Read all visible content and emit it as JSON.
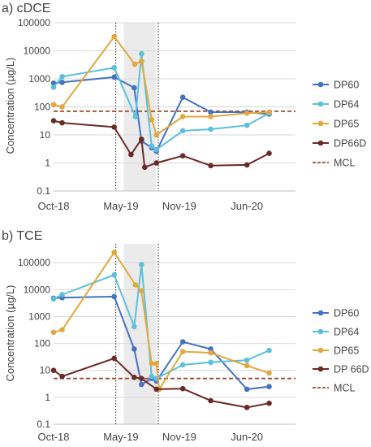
{
  "chart_data": [
    {
      "type": "line",
      "title": "a) cDCE",
      "ylabel": "Concentration (µg/L)",
      "yscale": "log",
      "ylim": [
        0.1,
        100000
      ],
      "ytick_labels": [
        "0.1",
        "1",
        "10",
        "100",
        "1000",
        "10000",
        "100000"
      ],
      "xlim": [
        "2018-10-01",
        "2020-11-01"
      ],
      "xtick_labels": [
        {
          "date": "2018-10-01",
          "label": "Oct-18"
        },
        {
          "date": "2019-05-01",
          "label": "May-19"
        },
        {
          "date": "2019-11-01",
          "label": "Nov-19"
        },
        {
          "date": "2020-06-01",
          "label": "Jun-20"
        }
      ],
      "shaded_period": [
        "2019-05-10",
        "2019-08-20"
      ],
      "vlines": [
        "2019-04-15",
        "2019-08-27"
      ],
      "legend_position": "right",
      "series": [
        {
          "name": "DP60",
          "color": "#4472c4",
          "points": [
            [
              "2018-10-01",
              700
            ],
            [
              "2018-10-28",
              750
            ],
            [
              "2019-04-10",
              1150
            ],
            [
              "2019-06-12",
              480
            ],
            [
              "2019-07-05",
              6
            ],
            [
              "2019-08-06",
              3.5
            ],
            [
              "2019-08-21",
              2.6
            ],
            [
              "2019-11-12",
              220
            ],
            [
              "2020-02-08",
              65
            ],
            [
              "2020-06-01",
              65
            ],
            [
              "2020-08-10",
              55
            ]
          ]
        },
        {
          "name": "DP64",
          "color": "#5bc0de",
          "points": [
            [
              "2018-10-01",
              500
            ],
            [
              "2018-10-28",
              1200
            ],
            [
              "2019-04-10",
              2500
            ],
            [
              "2019-06-16",
              45
            ],
            [
              "2019-07-05",
              7800
            ],
            [
              "2019-08-06",
              4
            ],
            [
              "2019-08-21",
              3
            ],
            [
              "2019-11-12",
              14
            ],
            [
              "2020-02-08",
              16
            ],
            [
              "2020-06-01",
              22
            ],
            [
              "2020-08-10",
              60
            ]
          ]
        },
        {
          "name": "DP65",
          "color": "#e3a83d",
          "points": [
            [
              "2018-10-01",
              120
            ],
            [
              "2018-10-28",
              100
            ],
            [
              "2019-04-10",
              32000
            ],
            [
              "2019-06-14",
              3300
            ],
            [
              "2019-07-05",
              4300
            ],
            [
              "2019-08-06",
              35
            ],
            [
              "2019-08-21",
              10
            ],
            [
              "2019-11-12",
              45
            ],
            [
              "2020-02-08",
              45
            ],
            [
              "2020-06-01",
              60
            ],
            [
              "2020-08-10",
              65
            ]
          ]
        },
        {
          "name": "DP66D",
          "color": "#6b2a25",
          "points": [
            [
              "2018-10-01",
              32
            ],
            [
              "2018-10-28",
              27
            ],
            [
              "2019-04-10",
              19
            ],
            [
              "2019-06-02",
              2
            ],
            [
              "2019-07-05",
              7
            ],
            [
              "2019-07-15",
              0.7
            ],
            [
              "2019-08-21",
              1
            ],
            [
              "2019-11-12",
              1.8
            ],
            [
              "2020-02-08",
              0.8
            ],
            [
              "2020-06-01",
              0.85
            ],
            [
              "2020-08-10",
              2.2
            ]
          ]
        }
      ],
      "mcl": {
        "name": "MCL",
        "value": 70,
        "color": "#a0472a"
      }
    },
    {
      "type": "line",
      "title": "b) TCE",
      "ylabel": "Concentration (µg/L)",
      "yscale": "log",
      "ylim": [
        0.1,
        500000
      ],
      "ytick_labels": [
        "0.1",
        "1",
        "10",
        "100",
        "1000",
        "10000",
        "100000"
      ],
      "xlim": [
        "2018-10-01",
        "2020-11-01"
      ],
      "xtick_labels": [
        {
          "date": "2018-10-01",
          "label": "Oct-18"
        },
        {
          "date": "2019-05-01",
          "label": "May-19"
        },
        {
          "date": "2019-11-01",
          "label": "Nov-19"
        },
        {
          "date": "2020-06-01",
          "label": "Jun-20"
        }
      ],
      "shaded_period": [
        "2019-05-10",
        "2019-08-20"
      ],
      "vlines": [
        "2019-04-15",
        "2019-08-27"
      ],
      "legend_position": "right",
      "series": [
        {
          "name": "DP60",
          "color": "#4472c4",
          "points": [
            [
              "2018-10-01",
              4800
            ],
            [
              "2018-10-28",
              5000
            ],
            [
              "2019-04-10",
              5500
            ],
            [
              "2019-06-12",
              62
            ],
            [
              "2019-07-05",
              3
            ],
            [
              "2019-08-06",
              5
            ],
            [
              "2019-08-21",
              4
            ],
            [
              "2019-11-12",
              115
            ],
            [
              "2020-02-08",
              62
            ],
            [
              "2020-06-01",
              2
            ],
            [
              "2020-08-10",
              2.5
            ]
          ]
        },
        {
          "name": "DP64",
          "color": "#5bc0de",
          "points": [
            [
              "2018-10-01",
              4500
            ],
            [
              "2018-10-28",
              6500
            ],
            [
              "2019-04-10",
              35000
            ],
            [
              "2019-06-12",
              420
            ],
            [
              "2019-07-05",
              85000
            ],
            [
              "2019-08-06",
              6
            ],
            [
              "2019-08-21",
              5
            ],
            [
              "2019-11-12",
              16
            ],
            [
              "2020-02-08",
              20
            ],
            [
              "2020-06-01",
              24
            ],
            [
              "2020-08-10",
              55
            ]
          ]
        },
        {
          "name": "DP65",
          "color": "#e3a83d",
          "points": [
            [
              "2018-10-01",
              260
            ],
            [
              "2018-10-28",
              320
            ],
            [
              "2019-04-10",
              240000
            ],
            [
              "2019-06-16",
              15000
            ],
            [
              "2019-07-05",
              9000
            ],
            [
              "2019-08-06",
              18
            ],
            [
              "2019-08-21",
              18
            ],
            [
              "2019-08-30",
              2
            ],
            [
              "2019-11-12",
              50
            ],
            [
              "2020-02-08",
              45
            ],
            [
              "2020-06-01",
              15
            ],
            [
              "2020-08-10",
              8
            ]
          ]
        },
        {
          "name": "DP 66D",
          "color": "#6b2a25",
          "points": [
            [
              "2018-10-01",
              10
            ],
            [
              "2018-10-28",
              6
            ],
            [
              "2019-04-10",
              28
            ],
            [
              "2019-06-12",
              5.5
            ],
            [
              "2019-07-05",
              5
            ],
            [
              "2019-08-21",
              2
            ],
            [
              "2019-11-12",
              2.1
            ],
            [
              "2020-02-08",
              0.75
            ],
            [
              "2020-06-01",
              0.42
            ],
            [
              "2020-08-10",
              0.6
            ]
          ]
        }
      ],
      "mcl": {
        "name": "MCL",
        "value": 5,
        "color": "#a0472a"
      }
    }
  ]
}
